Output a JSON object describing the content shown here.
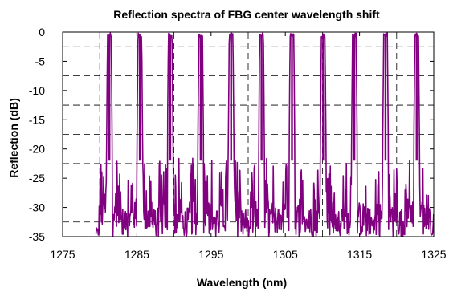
{
  "chart_data": {
    "type": "line",
    "title": "Reflection spectra of FBG center wavelength shift",
    "xlabel": "Wavelength (nm)",
    "ylabel": "Reflection (dB)",
    "xlim": [
      1275,
      1325
    ],
    "ylim": [
      -35,
      0
    ],
    "xticks": [
      1275,
      1285,
      1295,
      1305,
      1315,
      1325
    ],
    "yticks": [
      0,
      -5,
      -10,
      -15,
      -20,
      -25,
      -30,
      -35
    ],
    "x_gridlines": [
      1280,
      1290,
      1300,
      1310,
      1320
    ],
    "y_gridlines": [
      -2.5,
      -7.5,
      -12.5,
      -17.5,
      -22.5,
      -27.5,
      -32.5
    ],
    "grid": true,
    "legend": "none",
    "series_color": "#800080",
    "series": [
      {
        "peaks_nm": [
          1281.3,
          1285.4,
          1289.5,
          1293.6,
          1297.7,
          1301.8,
          1305.9,
          1310.1,
          1314.3,
          1318.5,
          1322.7
        ],
        "peak_level_db": -0.5,
        "peak_width_nm": 0.5,
        "sidelobe_band_db": [
          -35,
          -21.5
        ],
        "noise_floor_db": [
          -35,
          -30
        ],
        "wavelength_range_nm": [
          1279.5,
          1325
        ]
      }
    ]
  }
}
